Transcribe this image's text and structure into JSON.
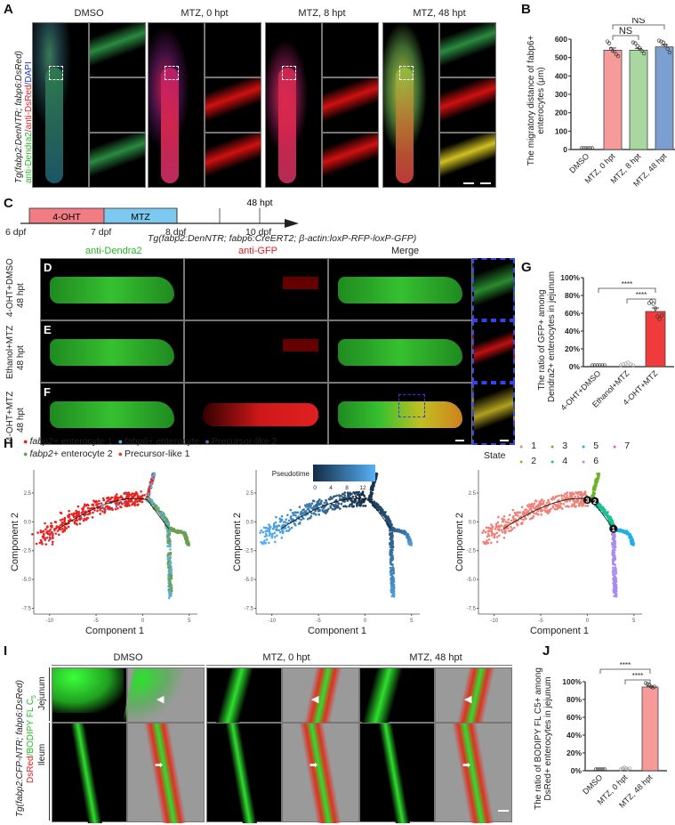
{
  "panels": {
    "A": {
      "label": "A",
      "columns": [
        "DMSO",
        "MTZ, 0 hpt",
        "MTZ, 8 hpt",
        "MTZ, 48 hpt"
      ],
      "side_label_line1": "Tg(fabp2:DenNTR; fabp6:DsRed)",
      "side_label_stain_green": "anti-Dendra2",
      "side_label_stain_red": "/anti-DsRed",
      "side_label_stain_blue": "/DAPI"
    },
    "B": {
      "label": "B",
      "ylabel_line1": "The migratory distance of fabp6+",
      "ylabel_line2": "enterocytes (μm)",
      "sig1": "NS",
      "sig2": "NS"
    },
    "C": {
      "label": "C",
      "seg1": "4-OHT",
      "seg2": "MTZ",
      "top_mark": "48 hpt",
      "ticks": [
        "6 dpf",
        "7 dpf",
        "8 dpf",
        "10 dpf"
      ],
      "genotype": "Tg(fabp2:DenNTR; fabp6:CreERT2; β-actin:loxP-RFP-loxP-GFP)"
    },
    "DEF": {
      "col_headers": [
        "anti-Dendra2",
        "anti-GFP",
        "Merge"
      ],
      "rows": [
        {
          "letter": "D",
          "line1": "4-OHT+DMSO",
          "line2": "48 hpt"
        },
        {
          "letter": "E",
          "line1": "Ethanol+MTZ",
          "line2": "48 hpt"
        },
        {
          "letter": "F",
          "line1": "4-OHT+MTZ",
          "line2": "48 hpt"
        }
      ]
    },
    "G": {
      "label": "G",
      "ylabel_line1": "The ratio of  GFP+ among",
      "ylabel_line2": "Dendra2+ enterocytes in jejunum",
      "sig": "****"
    },
    "H": {
      "label": "H",
      "legend": [
        {
          "name": "fabp2+",
          "suffix": " enterocyte 1",
          "color": "#e8231e"
        },
        {
          "name": "fabp6+",
          "suffix": " enterocyte",
          "color": "#5aaee0"
        },
        {
          "name": "",
          "suffix": "Precursor-like 2",
          "color": "#7b5ea8"
        },
        {
          "name": "fabp2+",
          "suffix": " enterocyte 2",
          "color": "#6aa050"
        },
        {
          "name": "",
          "suffix": "Precursor-like 1",
          "color": "#c8522a"
        }
      ],
      "pseudotime_label": "Pseudotime",
      "pseudotime_ticks": [
        "0",
        "4",
        "8",
        "12"
      ],
      "state_label": "State",
      "states": [
        {
          "n": "1",
          "color": "#f08076"
        },
        {
          "n": "3",
          "color": "#6cb32a"
        },
        {
          "n": "5",
          "color": "#1eb0e6"
        },
        {
          "n": "7",
          "color": "#ee55cc"
        },
        {
          "n": "2",
          "color": "#c89a22"
        },
        {
          "n": "4",
          "color": "#1cc093"
        },
        {
          "n": "6",
          "color": "#a98cf0"
        }
      ],
      "branch_points": [
        "1",
        "2",
        "3"
      ],
      "xlabel": "Component 1",
      "ylabel": "Component 2",
      "xticks": [
        "-10",
        "-5",
        "0",
        "5"
      ],
      "yticks": [
        "2.5",
        "0.0",
        "-2.5",
        "-5.0",
        "-7.5"
      ]
    },
    "I": {
      "label": "I",
      "columns": [
        "DMSO",
        "MTZ, 0 hpt",
        "MTZ, 48 hpt"
      ],
      "rows": [
        "Jejunum",
        "Ileum"
      ],
      "side_line1": "Tg(fabp2:CFP-NTR; fabp6:DsRed)",
      "side_red": "DsRed",
      "side_green": "/BODIPY FL C",
      "side_sub": "5"
    },
    "J": {
      "label": "J",
      "ylabel_line1": "The ratio of  BODIPY FL C5+  among",
      "ylabel_line2": "DsRed+ enterocytes in jejunum",
      "sig": "****"
    }
  },
  "chart_data": [
    {
      "id": "B",
      "type": "bar",
      "title": "",
      "xlabel": "",
      "ylabel": "The migratory distance of fabp6+ enterocytes (μm)",
      "categories": [
        "DMSO",
        "MTZ, 0 hpt",
        "MTZ, 8 hpt",
        "MTZ, 48 hpt"
      ],
      "values": [
        0,
        540,
        540,
        558
      ],
      "errors": [
        0,
        12,
        10,
        10
      ],
      "colors": [
        "#888888",
        "#f79a9a",
        "#a8d8a0",
        "#7a9fd0"
      ],
      "ylim": [
        0,
        600
      ],
      "yticks": [
        0,
        100,
        200,
        300,
        400,
        500,
        600
      ],
      "points": [
        [
          0,
          0,
          0,
          0,
          0,
          0
        ],
        [
          580,
          570,
          540,
          530,
          525,
          510,
          500
        ],
        [
          575,
          570,
          555,
          545,
          530,
          515
        ],
        [
          585,
          580,
          575,
          560,
          540,
          520
        ]
      ],
      "annotations": [
        {
          "from": "MTZ, 0 hpt",
          "to": "MTZ, 8 hpt",
          "text": "NS"
        },
        {
          "from": "MTZ, 0 hpt",
          "to": "MTZ, 48 hpt",
          "text": "NS"
        }
      ]
    },
    {
      "id": "G",
      "type": "bar",
      "ylabel": "The ratio of GFP+ among Dendra2+ enterocytes in jejunum",
      "categories": [
        "4-OHT+DMSO",
        "Ethanol+MTZ",
        "4-OHT+MTZ"
      ],
      "values": [
        0,
        1,
        62
      ],
      "errors": [
        0,
        1,
        4
      ],
      "colors": [
        "#888888",
        "#aaaaaa",
        "#ef3b3b"
      ],
      "ylim": [
        0,
        100
      ],
      "yticks": [
        "0%",
        "20%",
        "40%",
        "60%",
        "80%",
        "100%"
      ],
      "points": [
        [
          0,
          0,
          0,
          0,
          0,
          0
        ],
        [
          0,
          1,
          2,
          3,
          1,
          0
        ],
        [
          70,
          72,
          69,
          64,
          55,
          52,
          56
        ]
      ],
      "annotations": [
        {
          "from": "4-OHT+DMSO",
          "to": "4-OHT+MTZ",
          "text": "****"
        },
        {
          "from": "Ethanol+MTZ",
          "to": "4-OHT+MTZ",
          "text": "****"
        }
      ]
    },
    {
      "id": "J",
      "type": "bar",
      "ylabel": "The ratio of BODIPY FL C5+ among DsRed+ enterocytes in jejunum",
      "categories": [
        "DMSO",
        "MTZ, 0 hpt",
        "MTZ, 48 hpt"
      ],
      "values": [
        0,
        1,
        94
      ],
      "errors": [
        0,
        0.5,
        1
      ],
      "colors": [
        "#888888",
        "#aaaaaa",
        "#f79a9a"
      ],
      "ylim": [
        0,
        100
      ],
      "yticks": [
        "0%",
        "20%",
        "40%",
        "60%",
        "80%",
        "100%"
      ],
      "points": [
        [
          0,
          0,
          0,
          0,
          0,
          0
        ],
        [
          0,
          1,
          2,
          1,
          0,
          1
        ],
        [
          97,
          96,
          95,
          93,
          92,
          93
        ]
      ],
      "annotations": [
        {
          "from": "DMSO",
          "to": "MTZ, 48 hpt",
          "text": "****"
        },
        {
          "from": "MTZ, 0 hpt",
          "to": "MTZ, 48 hpt",
          "text": "****"
        }
      ]
    }
  ]
}
